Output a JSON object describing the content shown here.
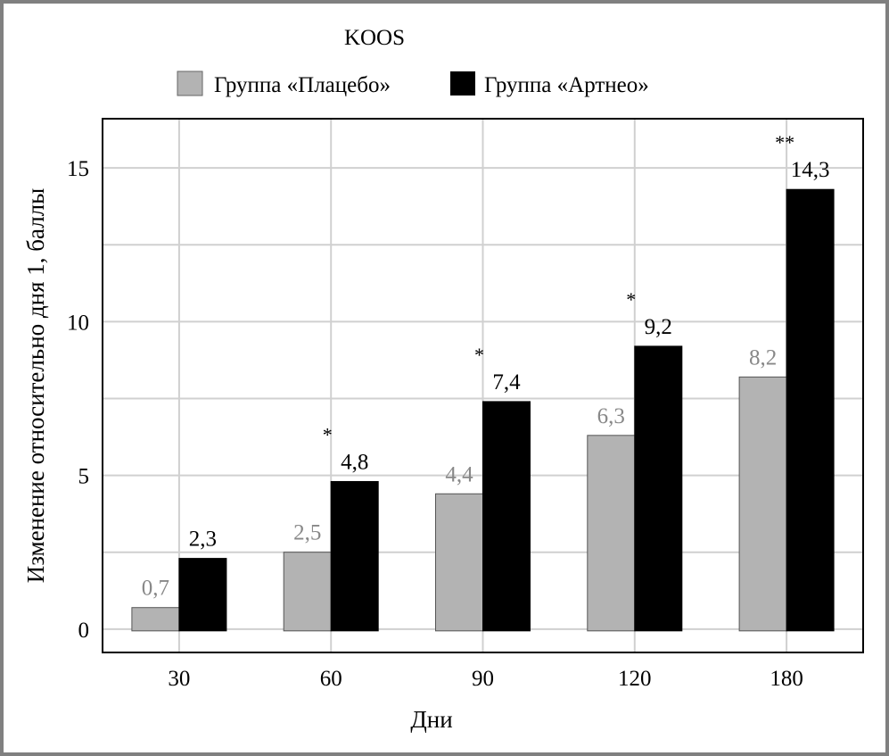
{
  "chart_data": {
    "type": "bar",
    "title": "KOOS",
    "xlabel": "Дни",
    "ylabel": "Изменение относительно дня 1, баллы",
    "categories": [
      "30",
      "60",
      "90",
      "120",
      "180"
    ],
    "series": [
      {
        "name": "Группа «Плацебо»",
        "color": "#b3b3b3",
        "values": [
          0.7,
          2.5,
          4.4,
          6.3,
          8.2
        ],
        "labels": [
          "0,7",
          "2,5",
          "4,4",
          "6,3",
          "8,2"
        ]
      },
      {
        "name": "Группа «Артнео»",
        "color": "#000000",
        "values": [
          2.3,
          4.8,
          7.4,
          9.2,
          14.3
        ],
        "labels": [
          "2,3",
          "4,8",
          "7,4",
          "9,2",
          "14,3"
        ]
      }
    ],
    "significance": [
      "",
      "*",
      "*",
      "*",
      "**"
    ],
    "yticks": [
      0,
      5,
      10,
      15
    ],
    "ylim": [
      -0.76,
      16.6
    ],
    "grid": true,
    "legend": "top"
  }
}
